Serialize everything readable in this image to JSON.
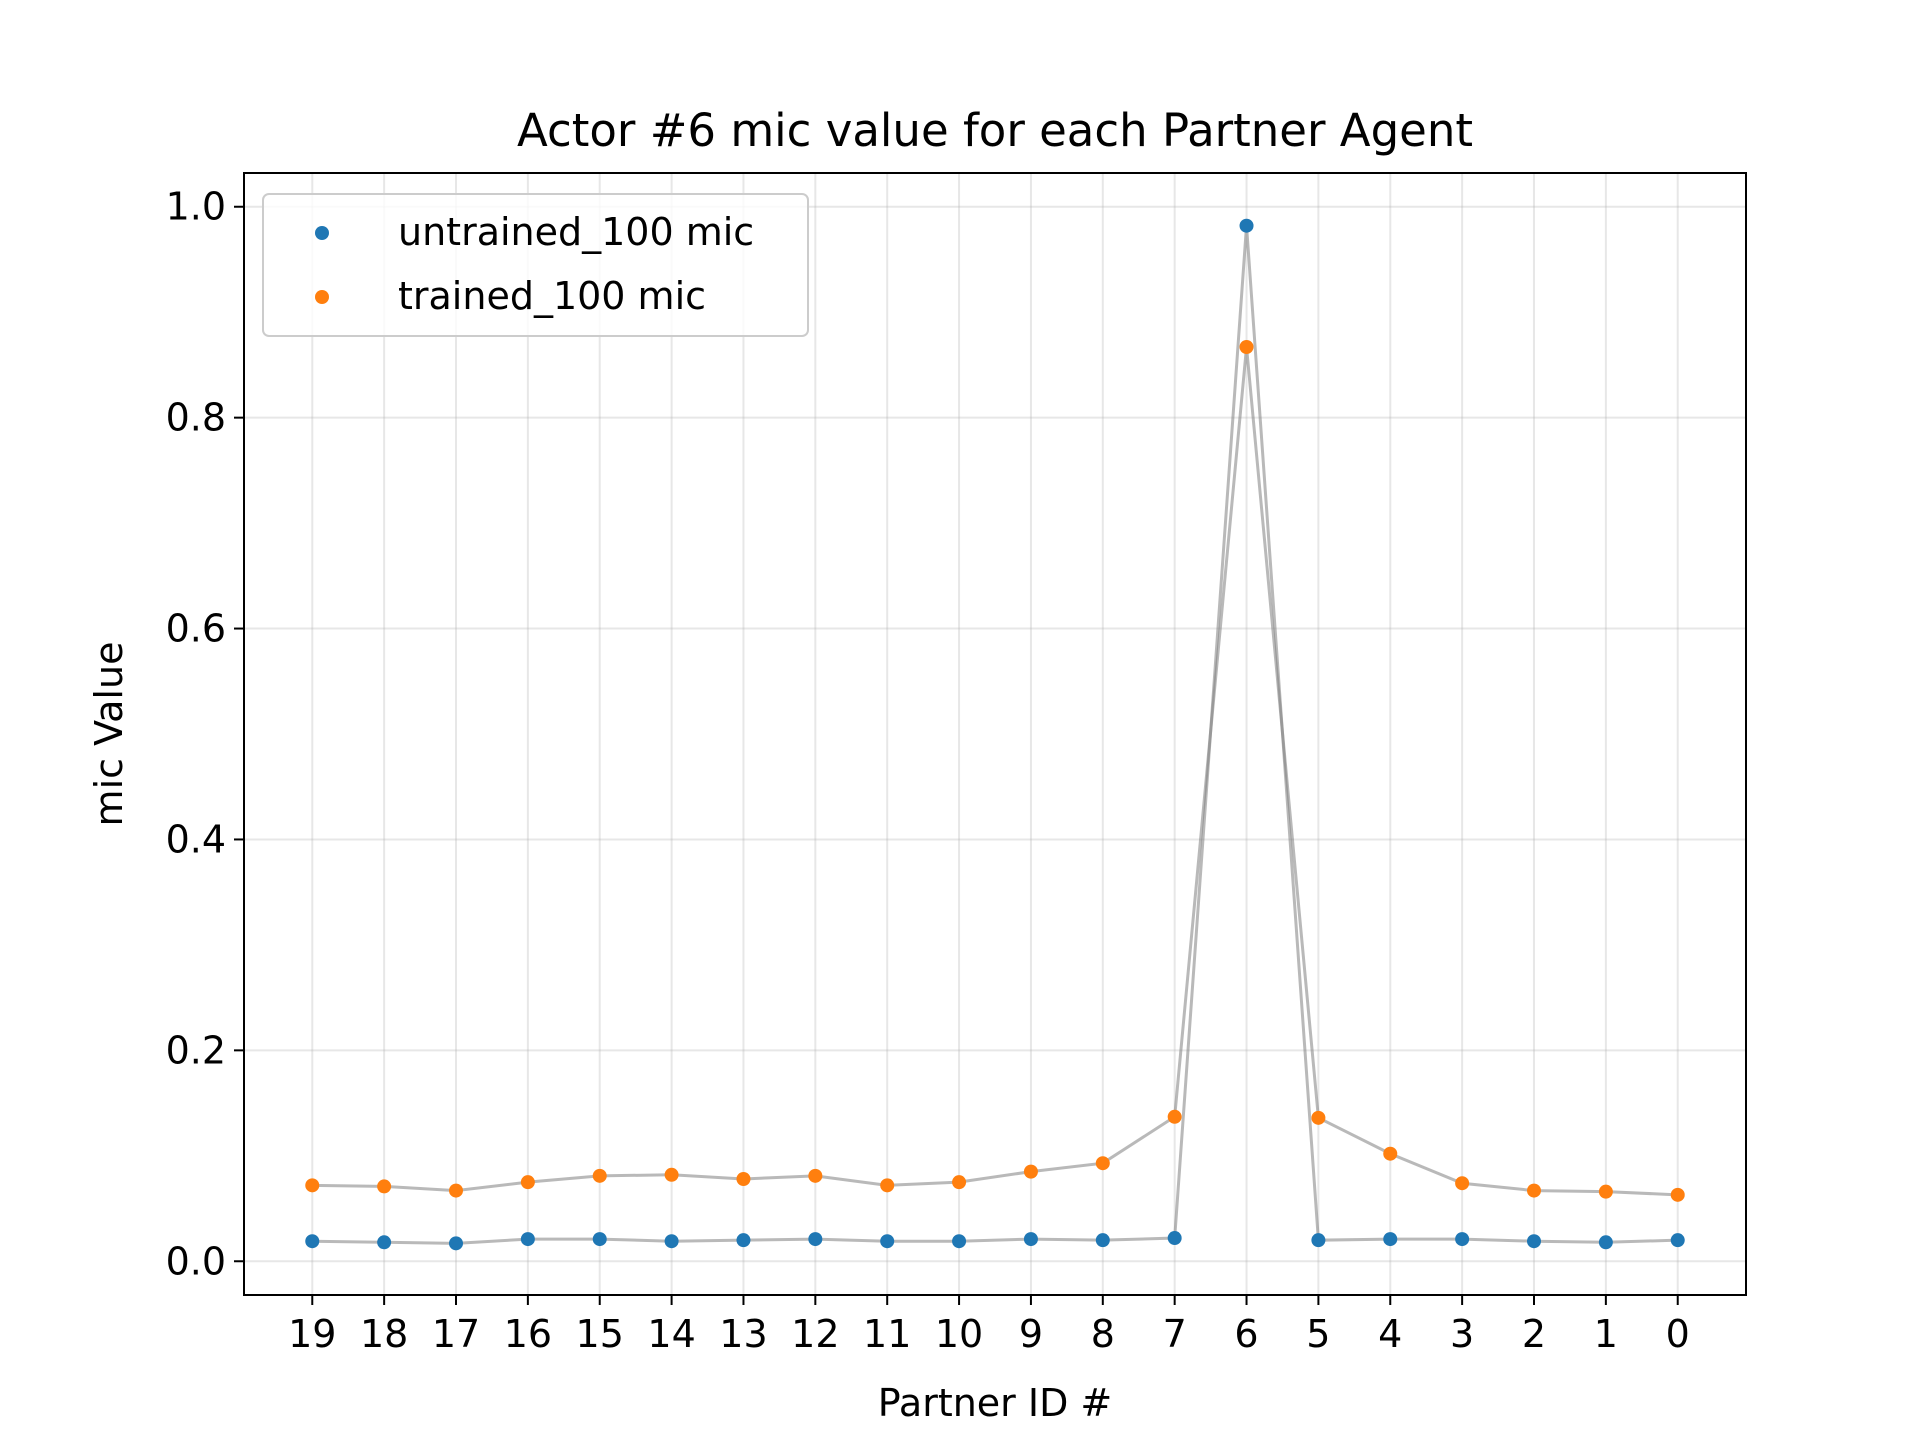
{
  "chart_data": {
    "type": "scatter",
    "title": "Actor #6 mic value for each Partner Agent",
    "xlabel": "Partner ID #",
    "ylabel": "mic Value",
    "categories": [
      "19",
      "18",
      "17",
      "16",
      "15",
      "14",
      "13",
      "12",
      "11",
      "10",
      "9",
      "8",
      "7",
      "6",
      "5",
      "4",
      "3",
      "2",
      "1",
      "0"
    ],
    "yticks": [
      "0.0",
      "0.2",
      "0.4",
      "0.6",
      "0.8",
      "1.0"
    ],
    "ylim": [
      -0.032,
      1.032
    ],
    "grid": true,
    "legend_position": "upper-left",
    "series": [
      {
        "name": "untrained_100 mic",
        "color": "#1f77b4",
        "values": [
          0.019,
          0.018,
          0.017,
          0.021,
          0.021,
          0.019,
          0.02,
          0.021,
          0.019,
          0.019,
          0.021,
          0.02,
          0.022,
          0.982,
          0.02,
          0.021,
          0.021,
          0.019,
          0.018,
          0.02
        ]
      },
      {
        "name": "trained_100 mic",
        "color": "#ff7f0e",
        "values": [
          0.072,
          0.071,
          0.067,
          0.075,
          0.081,
          0.082,
          0.078,
          0.081,
          0.072,
          0.075,
          0.085,
          0.093,
          0.137,
          0.867,
          0.136,
          0.102,
          0.074,
          0.067,
          0.066,
          0.063
        ]
      }
    ],
    "connector_color": "#808080"
  }
}
